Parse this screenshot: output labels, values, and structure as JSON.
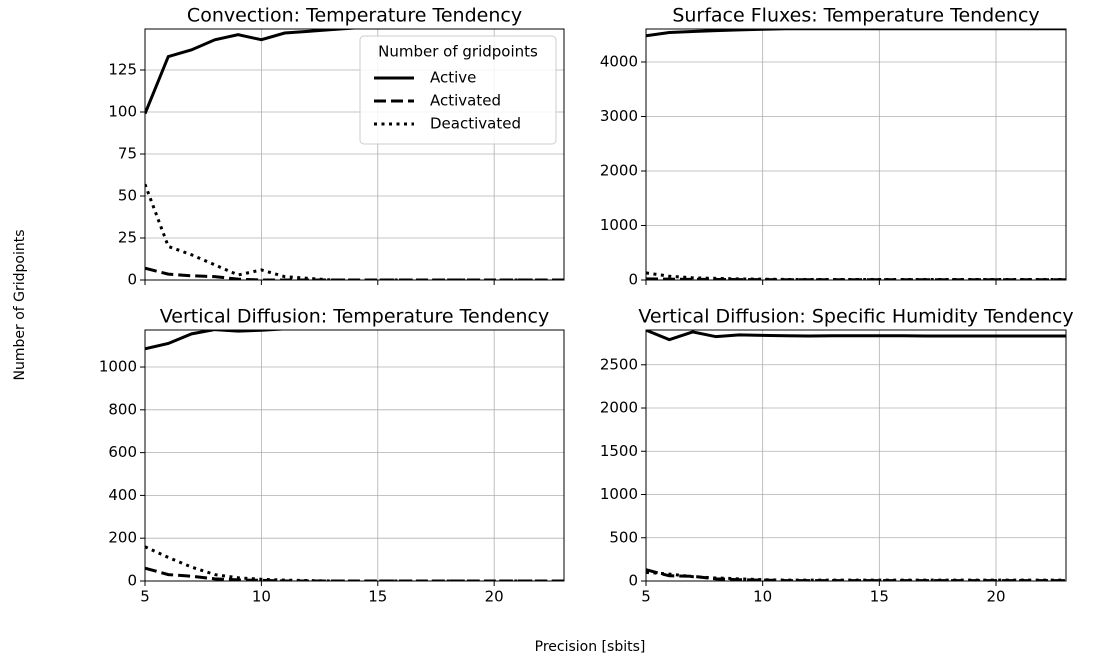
{
  "figure": {
    "xlabel": "Precision [sbits]",
    "ylabel": "Number of Gridpoints"
  },
  "chart_data": [
    {
      "type": "line",
      "title": "Convection: Temperature Tendency",
      "x": [
        5,
        6,
        7,
        8,
        9,
        10,
        11,
        12,
        13,
        14,
        15,
        16,
        17,
        18,
        19,
        20,
        21,
        22,
        23
      ],
      "xlim": [
        5,
        23
      ],
      "xticks": [
        5,
        10,
        15,
        20
      ],
      "show_xtick_labels": false,
      "ylim": [
        0,
        149.4
      ],
      "yticks": [
        0,
        25,
        50,
        75,
        100,
        125
      ],
      "grid": true,
      "legend": {
        "title": "Number of gridpoints",
        "loc": "upper right"
      },
      "series": [
        {
          "name": "Active",
          "style": "solid",
          "color": "#000000",
          "values": [
            99,
            133,
            137,
            143,
            146,
            143,
            147,
            148,
            149,
            150,
            150,
            150,
            150,
            150,
            150,
            150,
            150,
            150,
            150
          ]
        },
        {
          "name": "Activated",
          "style": "dashed",
          "color": "#000000",
          "values": [
            7,
            3.5,
            2.5,
            2,
            0.5,
            0,
            0,
            0,
            0,
            0,
            0,
            0,
            0,
            0,
            0,
            0,
            0,
            0,
            0
          ]
        },
        {
          "name": "Deactivated",
          "style": "dotted",
          "color": "#000000",
          "values": [
            57,
            20,
            15,
            9,
            3,
            6,
            2,
            1,
            0,
            0,
            0,
            0,
            0,
            0,
            0,
            0,
            0,
            0,
            0
          ]
        }
      ]
    },
    {
      "type": "line",
      "title": "Surface Fluxes: Temperature Tendency",
      "x": [
        5,
        6,
        7,
        8,
        9,
        10,
        11,
        12,
        13,
        14,
        15,
        16,
        17,
        18,
        19,
        20,
        21,
        22,
        23
      ],
      "xlim": [
        5,
        23
      ],
      "xticks": [
        5,
        10,
        15,
        20
      ],
      "show_xtick_labels": false,
      "ylim": [
        0,
        4605
      ],
      "yticks": [
        0,
        1000,
        2000,
        3000,
        4000
      ],
      "grid": true,
      "series": [
        {
          "style": "solid",
          "color": "#000000",
          "values": [
            4480,
            4540,
            4560,
            4575,
            4590,
            4600,
            4610,
            4610,
            4610,
            4610,
            4610,
            4610,
            4610,
            4610,
            4610,
            4610,
            4610,
            4610,
            4610
          ]
        },
        {
          "style": "dashed",
          "color": "#000000",
          "values": [
            20,
            15,
            12,
            10,
            8,
            6,
            5,
            5,
            5,
            5,
            5,
            5,
            5,
            5,
            5,
            5,
            5,
            5,
            5
          ]
        },
        {
          "style": "dotted",
          "color": "#000000",
          "values": [
            130,
            70,
            40,
            30,
            20,
            15,
            10,
            10,
            10,
            10,
            10,
            10,
            10,
            10,
            10,
            10,
            10,
            10,
            10
          ]
        }
      ]
    },
    {
      "type": "line",
      "title": "Vertical Diffusion: Temperature Tendency",
      "x": [
        5,
        6,
        7,
        8,
        9,
        10,
        11,
        12,
        13,
        14,
        15,
        16,
        17,
        18,
        19,
        20,
        21,
        22,
        23
      ],
      "xlim": [
        5,
        23
      ],
      "xticks": [
        5,
        10,
        15,
        20
      ],
      "show_xtick_labels": true,
      "ylim": [
        0,
        1173
      ],
      "yticks": [
        0,
        200,
        400,
        600,
        800,
        1000
      ],
      "grid": true,
      "series": [
        {
          "style": "solid",
          "color": "#000000",
          "values": [
            1085,
            1110,
            1155,
            1175,
            1168,
            1172,
            1178,
            1180,
            1180,
            1180,
            1180,
            1180,
            1180,
            1180,
            1180,
            1180,
            1180,
            1180,
            1180
          ]
        },
        {
          "style": "dashed",
          "color": "#000000",
          "values": [
            60,
            30,
            22,
            10,
            5,
            3,
            0,
            0,
            0,
            0,
            0,
            0,
            0,
            0,
            0,
            0,
            0,
            0,
            0
          ]
        },
        {
          "style": "dotted",
          "color": "#000000",
          "values": [
            160,
            110,
            65,
            30,
            15,
            8,
            4,
            2,
            0,
            0,
            0,
            0,
            0,
            0,
            0,
            0,
            0,
            0,
            0
          ]
        }
      ]
    },
    {
      "type": "line",
      "title": "Vertical Diffusion: Specific Humidity Tendency",
      "x": [
        5,
        6,
        7,
        8,
        9,
        10,
        11,
        12,
        13,
        14,
        15,
        16,
        17,
        18,
        19,
        20,
        21,
        22,
        23
      ],
      "xlim": [
        5,
        23
      ],
      "xticks": [
        5,
        10,
        15,
        20
      ],
      "show_xtick_labels": true,
      "ylim": [
        0,
        2902
      ],
      "yticks": [
        0,
        500,
        1000,
        1500,
        2000,
        2500
      ],
      "grid": true,
      "series": [
        {
          "style": "solid",
          "color": "#000000",
          "values": [
            2900,
            2790,
            2880,
            2825,
            2845,
            2840,
            2835,
            2832,
            2835,
            2835,
            2835,
            2835,
            2833,
            2833,
            2833,
            2833,
            2833,
            2833,
            2833
          ]
        },
        {
          "style": "dashed",
          "color": "#000000",
          "values": [
            130,
            60,
            55,
            25,
            15,
            10,
            5,
            5,
            5,
            5,
            5,
            5,
            5,
            5,
            5,
            5,
            5,
            5,
            5
          ]
        },
        {
          "style": "dotted",
          "color": "#000000",
          "values": [
            100,
            80,
            50,
            35,
            25,
            15,
            10,
            10,
            10,
            10,
            10,
            10,
            10,
            10,
            10,
            10,
            10,
            10,
            10
          ]
        }
      ]
    }
  ]
}
